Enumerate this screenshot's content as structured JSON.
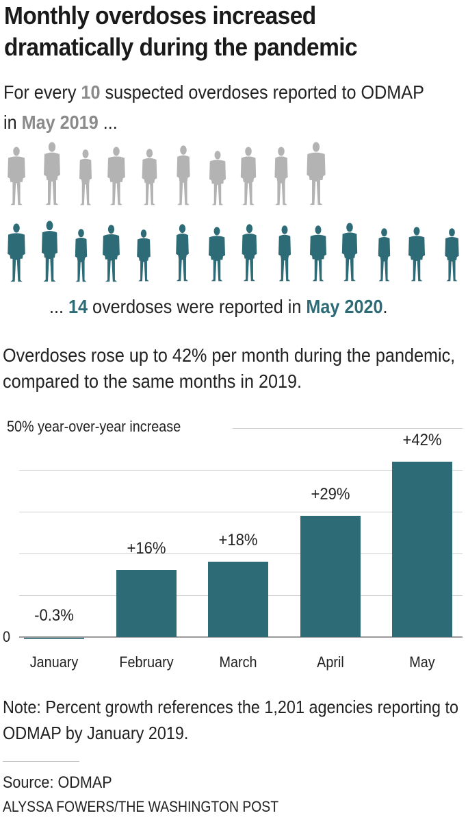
{
  "header": {
    "title_line1": "Monthly overdoses increased",
    "title_line2": "dramatically during the pandemic"
  },
  "intro": {
    "pre": "For every ",
    "count_2019": "10",
    "mid": " suspected overdoses reported to ODMAP in ",
    "period_2019": "May 2019",
    "post": " ..."
  },
  "pictogram": {
    "row_2019": {
      "count": 10,
      "color": "#b3b3b3",
      "icon": "person-silhouette-icon"
    },
    "row_2020": {
      "count": 14,
      "color": "#2d6b76",
      "icon": "person-silhouette-icon"
    }
  },
  "after": {
    "pre": "... ",
    "count_2020": "14",
    "mid": " overdoses were reported in ",
    "period_2020": "May 2020",
    "post": "."
  },
  "subhead": "Overdoses rose up to 42% per month during the pandemic, compared to the same months in 2019.",
  "colors": {
    "accent": "#2d6b76",
    "muted": "#8a8a8a",
    "gridline": "#cfcfcf",
    "text": "#222222"
  },
  "chart_data": {
    "type": "bar",
    "title": "Overdoses rose up to 42% per month during the pandemic, compared to the same months in 2019.",
    "xlabel": "",
    "ylabel": "50% year-over-year increase",
    "categories": [
      "January",
      "February",
      "March",
      "April",
      "May"
    ],
    "values": [
      -0.3,
      16,
      18,
      29,
      42
    ],
    "value_labels": [
      "-0.3%",
      "+16%",
      "+18%",
      "+29%",
      "+42%"
    ],
    "ylim": [
      0,
      50
    ],
    "yticks": [
      0,
      10,
      20,
      30,
      40,
      50
    ],
    "ytick_labels": [
      "0",
      "",
      "",
      "",
      "",
      "50% year-over-year increase"
    ],
    "grid": true,
    "legend": "none"
  },
  "footer": {
    "note": "Note: Percent growth references the 1,201 agencies reporting to ODMAP by January 2019.",
    "source": "Source: ODMAP",
    "credit": "ALYSSA FOWERS/THE WASHINGTON POST"
  }
}
